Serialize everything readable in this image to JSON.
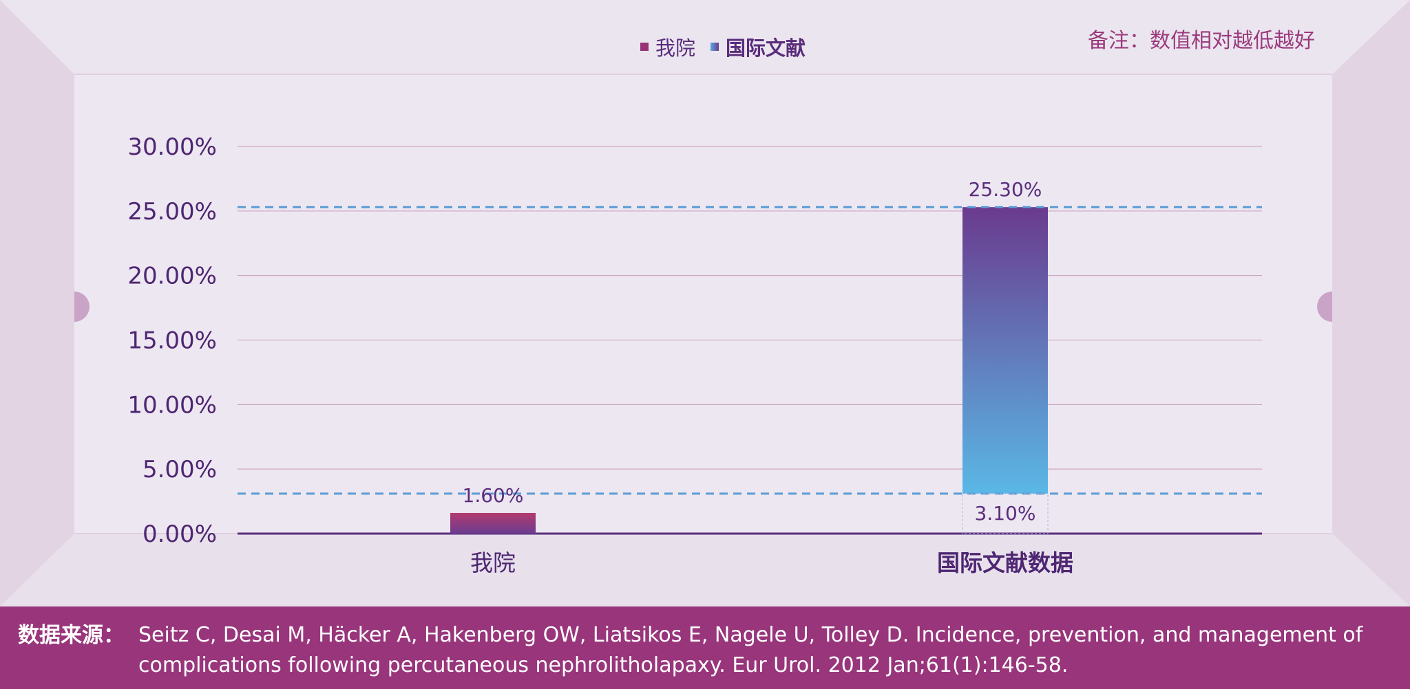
{
  "legend": {
    "ours": "我院",
    "intl": "国际文献"
  },
  "note": "备注：数值相对越低越好",
  "footer": {
    "source_label": "数据来源：",
    "source_text": "Seitz C, Desai M, Häcker A, Hakenberg OW, Liatsikos E, Nagele U, Tolley D. Incidence, prevention, and management of complications following percutaneous nephrolitholapaxy. Eur Urol. 2012 Jan;61(1):146-58."
  },
  "colors": {
    "ours_top": "#b23a6e",
    "ours_bottom": "#6a3d90",
    "intl_top": "#6a3a8e",
    "intl_bottom": "#5ab8e6",
    "reference_line": "#5b9bd5",
    "grid": "#c79ab8"
  },
  "chart_data": {
    "type": "bar",
    "categories": [
      "我院",
      "国际文献数据"
    ],
    "values": [
      1.6,
      25.3
    ],
    "value_labels": [
      "1.60%",
      "25.30%"
    ],
    "ylim": [
      0,
      30
    ],
    "yticks": [
      "0.00%",
      "5.00%",
      "10.00%",
      "15.00%",
      "20.00%",
      "25.00%",
      "30.00%"
    ],
    "reference_lines": [
      25.3,
      3.1
    ],
    "reference_label": "3.10%",
    "grid": true,
    "legend_position": "top-center"
  }
}
